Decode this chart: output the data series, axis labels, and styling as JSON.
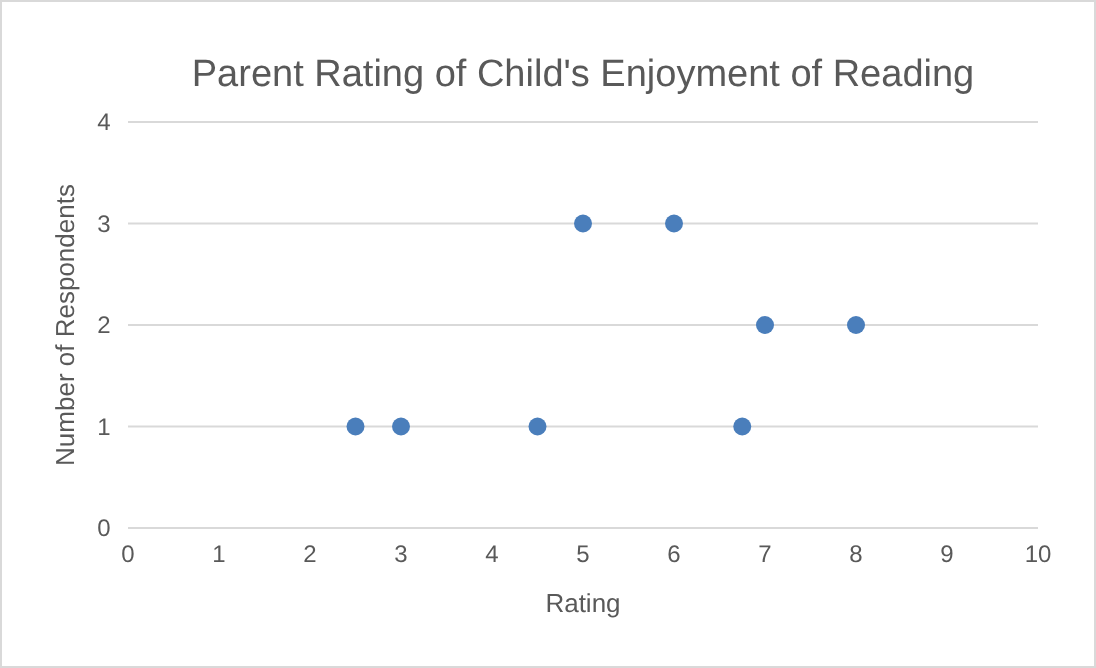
{
  "chart_data": {
    "type": "scatter",
    "title": "Parent Rating of Child's Enjoyment of Reading",
    "xlabel": "Rating",
    "ylabel": "Number of Respondents",
    "x": [
      2.5,
      3,
      4.5,
      5,
      6,
      6.75,
      7,
      8
    ],
    "values": [
      1,
      1,
      1,
      3,
      3,
      1,
      2,
      2
    ],
    "color": "#4a7ebb",
    "marker": "circle",
    "xlim": [
      0,
      10
    ],
    "xticks": [
      0,
      1,
      2,
      3,
      4,
      5,
      6,
      7,
      8,
      9,
      10
    ],
    "ylim": [
      0,
      4
    ],
    "yticks": [
      0,
      1,
      2,
      3,
      4
    ],
    "grid": "y"
  }
}
